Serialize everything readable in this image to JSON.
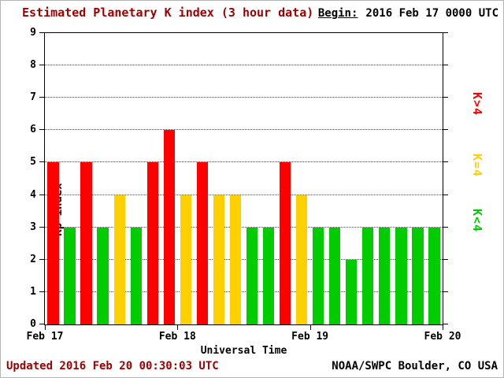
{
  "header": {
    "title": "Estimated Planetary K index (3 hour data)",
    "begin_label": "Begin:",
    "begin_value": "2016 Feb 17 0000 UTC"
  },
  "footer": {
    "updated": "Updated 2016 Feb 20 00:30:03 UTC",
    "credit": "NOAA/SWPC Boulder, CO USA"
  },
  "colors": {
    "title_text": "#a00000",
    "updated_text": "#a00000",
    "static_text": "#000000",
    "background": "#ffffff"
  },
  "chart_data": {
    "type": "bar",
    "title": "Estimated Planetary K index (3 hour data)",
    "xlabel": "Universal Time",
    "ylabel": "Kp index",
    "ylim": [
      0,
      9
    ],
    "y_ticks": [
      0,
      1,
      2,
      3,
      4,
      5,
      6,
      7,
      8,
      9
    ],
    "x_ticks": [
      "Feb 17",
      "Feb 18",
      "Feb 19",
      "Feb 20"
    ],
    "bin_hours": 3,
    "bars_per_day": 8,
    "grid": "horizontal dotted lines at each integer Kp value",
    "values": [
      5,
      3,
      5,
      3,
      4,
      3,
      5,
      6,
      4,
      5,
      4,
      4,
      3,
      3,
      5,
      4,
      3,
      3,
      2,
      3,
      3,
      3,
      3,
      3
    ],
    "colors": {
      "red": "#ff0000",
      "yellow": "#ffd000",
      "green": "#00cc00"
    },
    "color_rule": {
      "gt4": "red",
      "eq4": "yellow",
      "lt4": "green"
    },
    "legend": [
      {
        "label": "K>4",
        "color": "#ff0000"
      },
      {
        "label": "K=4",
        "color": "#ffd000"
      },
      {
        "label": "K<4",
        "color": "#00cc00"
      }
    ],
    "legend_position": "right, vertical text"
  }
}
